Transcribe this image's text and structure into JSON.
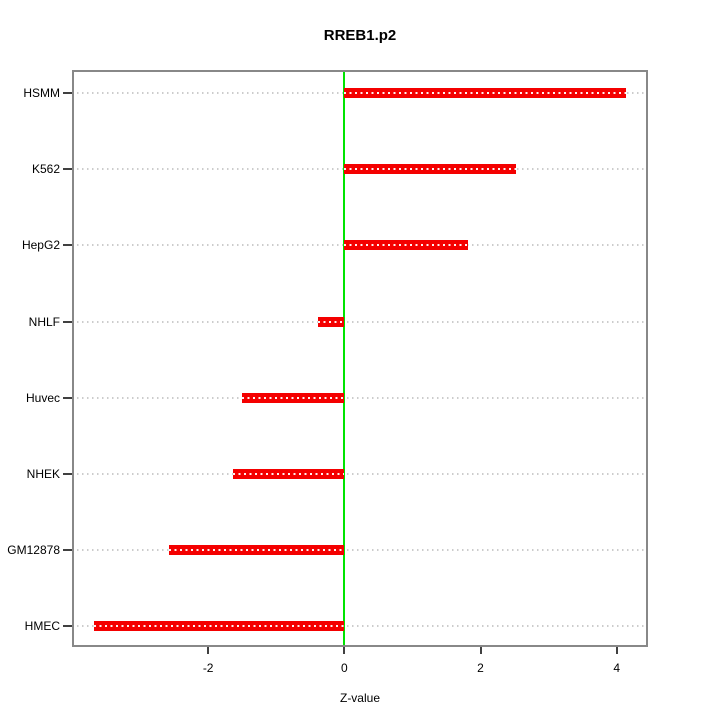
{
  "chart_data": {
    "type": "bar",
    "orientation": "horizontal",
    "title": "RREB1.p2",
    "xlabel": "Z-value",
    "ylabel": "",
    "categories": [
      "HSMM",
      "K562",
      "HepG2",
      "NHLF",
      "Huvec",
      "NHEK",
      "GM12878",
      "HMEC"
    ],
    "values": [
      4.14,
      2.52,
      1.81,
      -0.39,
      -1.5,
      -1.63,
      -2.58,
      -3.68
    ],
    "xlim": [
      -4.0,
      4.46
    ],
    "x_ticks": [
      -2,
      0,
      2,
      4
    ],
    "x_tick_labels": [
      "-2",
      "0",
      "2",
      "4"
    ],
    "zero_reference_line": 0,
    "grid": true,
    "legend": false,
    "colors": {
      "bar": "#f40000",
      "bar_dash": "#ffffff",
      "zero_line": "#00e400",
      "grid": "#cccccc",
      "frame": "#888888",
      "tick": "#404040",
      "text": "#000000",
      "background": "#ffffff"
    }
  }
}
